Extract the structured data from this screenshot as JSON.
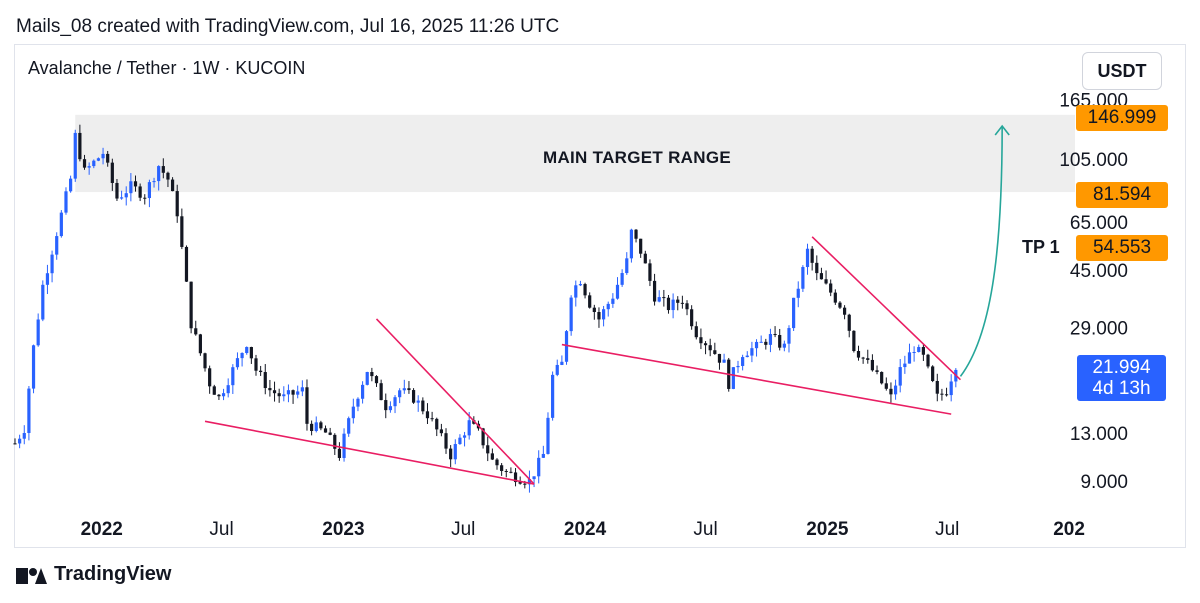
{
  "header": {
    "title": "Mails_08 created with TradingView.com, Jul 16, 2025 11:26 UTC"
  },
  "symbol": {
    "label": "Avalanche / Tether · 1W · KUCOIN"
  },
  "currency": {
    "label": "USDT"
  },
  "footer": {
    "brand": "TradingView"
  },
  "colors": {
    "up": "#2962ff",
    "down": "#131722",
    "trend": "#e91e63",
    "arrow": "#26a69a",
    "zone": "#eeeeee",
    "tag": "#ff9800",
    "current": "#2962ff"
  },
  "chart_data": {
    "type": "candlestick",
    "scale": "log",
    "ylim": [
      7.5,
      175
    ],
    "xlim": [
      "2021-08-23",
      "2026-01-10"
    ],
    "y_ticks": [
      "165.000",
      "105.000",
      "65.000",
      "45.000",
      "29.000",
      "13.000",
      "9.000"
    ],
    "x_ticks": [
      {
        "label": "2022",
        "date": "2022-01-01",
        "bold": true
      },
      {
        "label": "Jul",
        "date": "2022-07-01",
        "bold": false
      },
      {
        "label": "2023",
        "date": "2023-01-01",
        "bold": true
      },
      {
        "label": "Jul",
        "date": "2023-07-01",
        "bold": false
      },
      {
        "label": "2024",
        "date": "2024-01-01",
        "bold": true
      },
      {
        "label": "Jul",
        "date": "2024-07-01",
        "bold": false
      },
      {
        "label": "2025",
        "date": "2025-01-01",
        "bold": true
      },
      {
        "label": "Jul",
        "date": "2025-07-01",
        "bold": false
      },
      {
        "label": "202",
        "date": "2026-01-01",
        "bold": true
      }
    ],
    "price_path": [
      [
        "2021-08-23",
        12
      ],
      [
        "2021-09-06",
        13.5
      ],
      [
        "2021-09-20",
        25
      ],
      [
        "2021-10-04",
        40
      ],
      [
        "2021-10-25",
        60
      ],
      [
        "2021-11-15",
        90
      ],
      [
        "2021-11-22",
        125
      ],
      [
        "2021-12-06",
        95
      ],
      [
        "2022-01-03",
        110
      ],
      [
        "2022-01-24",
        78
      ],
      [
        "2022-02-14",
        85
      ],
      [
        "2022-03-07",
        80
      ],
      [
        "2022-03-28",
        100
      ],
      [
        "2022-04-11",
        90
      ],
      [
        "2022-04-25",
        70
      ],
      [
        "2022-05-09",
        40
      ],
      [
        "2022-05-16",
        30
      ],
      [
        "2022-06-13",
        19
      ],
      [
        "2022-06-27",
        17
      ],
      [
        "2022-07-18",
        21
      ],
      [
        "2022-08-08",
        26
      ],
      [
        "2022-08-22",
        21
      ],
      [
        "2022-09-12",
        18
      ],
      [
        "2022-10-03",
        17
      ],
      [
        "2022-10-31",
        18
      ],
      [
        "2022-11-07",
        14
      ],
      [
        "2022-12-05",
        13
      ],
      [
        "2022-12-26",
        11
      ],
      [
        "2023-01-16",
        16
      ],
      [
        "2023-02-06",
        21
      ],
      [
        "2023-03-06",
        16
      ],
      [
        "2023-03-27",
        18
      ],
      [
        "2023-04-17",
        17
      ],
      [
        "2023-05-08",
        15
      ],
      [
        "2023-06-12",
        11
      ],
      [
        "2023-07-10",
        14
      ],
      [
        "2023-07-24",
        13
      ],
      [
        "2023-08-14",
        10.5
      ],
      [
        "2023-09-04",
        9.6
      ],
      [
        "2023-10-09",
        9
      ],
      [
        "2023-10-30",
        11
      ],
      [
        "2023-11-13",
        20
      ],
      [
        "2023-11-27",
        22
      ],
      [
        "2023-12-11",
        38
      ],
      [
        "2023-12-25",
        42
      ],
      [
        "2024-01-08",
        35
      ],
      [
        "2024-01-22",
        31
      ],
      [
        "2024-02-12",
        37
      ],
      [
        "2024-03-04",
        48
      ],
      [
        "2024-03-11",
        60
      ],
      [
        "2024-03-25",
        52
      ],
      [
        "2024-04-15",
        37
      ],
      [
        "2024-05-06",
        34
      ],
      [
        "2024-05-27",
        36
      ],
      [
        "2024-06-17",
        28
      ],
      [
        "2024-07-08",
        25
      ],
      [
        "2024-07-29",
        22
      ],
      [
        "2024-08-05",
        19
      ],
      [
        "2024-08-26",
        24
      ],
      [
        "2024-09-16",
        25
      ],
      [
        "2024-10-07",
        27
      ],
      [
        "2024-10-28",
        25
      ],
      [
        "2024-11-11",
        35
      ],
      [
        "2024-11-25",
        45
      ],
      [
        "2024-12-02",
        52
      ],
      [
        "2024-12-16",
        43
      ],
      [
        "2025-01-06",
        38
      ],
      [
        "2025-01-27",
        33
      ],
      [
        "2025-02-10",
        25
      ],
      [
        "2025-03-03",
        22
      ],
      [
        "2025-03-24",
        19
      ],
      [
        "2025-04-07",
        17
      ],
      [
        "2025-04-21",
        21
      ],
      [
        "2025-05-12",
        25
      ],
      [
        "2025-05-26",
        23
      ],
      [
        "2025-06-16",
        17
      ],
      [
        "2025-06-30",
        18
      ],
      [
        "2025-07-14",
        21.994
      ]
    ],
    "current_price": "21.994",
    "current_countdown": "4d 13h",
    "price_tags": [
      "146.999",
      "81.594",
      "54.553"
    ],
    "target_zone": {
      "label": "MAIN TARGET RANGE",
      "from": 81.594,
      "to": 146.999
    },
    "tp_label": "TP 1",
    "trendlines": [
      {
        "from": [
          "2022-06-06",
          14.2
        ],
        "to": [
          "2023-10-16",
          8.8
        ]
      },
      {
        "from": [
          "2023-02-20",
          31
        ],
        "to": [
          "2023-10-16",
          8.8
        ]
      },
      {
        "from": [
          "2023-11-27",
          25.5
        ],
        "to": [
          "2025-07-07",
          15
        ]
      },
      {
        "from": [
          "2024-12-09",
          58
        ],
        "to": [
          "2025-07-21",
          19.5
        ]
      }
    ],
    "projection": {
      "from": [
        "2025-07-21",
        20
      ],
      "to": [
        "2025-09-22",
        135
      ]
    }
  }
}
